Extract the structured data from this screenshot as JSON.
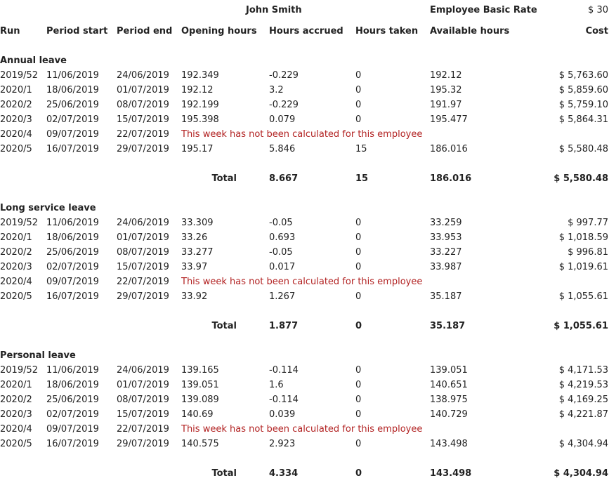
{
  "header": {
    "employee_name": "John Smith",
    "rate_label": "Employee Basic Rate",
    "rate_value": "$ 30"
  },
  "columns": {
    "run": "Run",
    "period_start": "Period start",
    "period_end": "Period end",
    "opening_hours": "Opening hours",
    "hours_accrued": "Hours accrued",
    "hours_taken": "Hours taken",
    "available_hours": "Available hours",
    "cost": "Cost"
  },
  "sections": [
    {
      "title": "Annual leave",
      "rows": [
        {
          "run": "2019/52",
          "period_start": "11/06/2019",
          "period_end": "24/06/2019",
          "opening": "192.349",
          "accrued": "-0.229",
          "taken": "0",
          "available": "192.12",
          "cost": "$ 5,763.60"
        },
        {
          "run": "2020/1",
          "period_start": "18/06/2019",
          "period_end": "01/07/2019",
          "opening": "192.12",
          "accrued": "3.2",
          "taken": "0",
          "available": "195.32",
          "cost": "$ 5,859.60"
        },
        {
          "run": "2020/2",
          "period_start": "25/06/2019",
          "period_end": "08/07/2019",
          "opening": "192.199",
          "accrued": "-0.229",
          "taken": "0",
          "available": "191.97",
          "cost": "$ 5,759.10"
        },
        {
          "run": "2020/3",
          "period_start": "02/07/2019",
          "period_end": "15/07/2019",
          "opening": "195.398",
          "accrued": "0.079",
          "taken": "0",
          "available": "195.477",
          "cost": "$ 5,864.31"
        },
        {
          "run": "2020/4",
          "period_start": "09/07/2019",
          "period_end": "22/07/2019",
          "message": "This week has not been calculated for this employee"
        },
        {
          "run": "2020/5",
          "period_start": "16/07/2019",
          "period_end": "29/07/2019",
          "opening": "195.17",
          "accrued": "5.846",
          "taken": "15",
          "available": "186.016",
          "cost": "$ 5,580.48"
        }
      ],
      "total": {
        "label": "Total",
        "accrued": "8.667",
        "taken": "15",
        "available": "186.016",
        "cost": "$ 5,580.48"
      }
    },
    {
      "title": "Long service leave",
      "rows": [
        {
          "run": "2019/52",
          "period_start": "11/06/2019",
          "period_end": "24/06/2019",
          "opening": "33.309",
          "accrued": "-0.05",
          "taken": "0",
          "available": "33.259",
          "cost": "$ 997.77"
        },
        {
          "run": "2020/1",
          "period_start": "18/06/2019",
          "period_end": "01/07/2019",
          "opening": "33.26",
          "accrued": "0.693",
          "taken": "0",
          "available": "33.953",
          "cost": "$ 1,018.59"
        },
        {
          "run": "2020/2",
          "period_start": "25/06/2019",
          "period_end": "08/07/2019",
          "opening": "33.277",
          "accrued": "-0.05",
          "taken": "0",
          "available": "33.227",
          "cost": "$ 996.81"
        },
        {
          "run": "2020/3",
          "period_start": "02/07/2019",
          "period_end": "15/07/2019",
          "opening": "33.97",
          "accrued": "0.017",
          "taken": "0",
          "available": "33.987",
          "cost": "$ 1,019.61"
        },
        {
          "run": "2020/4",
          "period_start": "09/07/2019",
          "period_end": "22/07/2019",
          "message": "This week has not been calculated for this employee"
        },
        {
          "run": "2020/5",
          "period_start": "16/07/2019",
          "period_end": "29/07/2019",
          "opening": "33.92",
          "accrued": "1.267",
          "taken": "0",
          "available": "35.187",
          "cost": "$ 1,055.61"
        }
      ],
      "total": {
        "label": "Total",
        "accrued": "1.877",
        "taken": "0",
        "available": "35.187",
        "cost": "$ 1,055.61"
      }
    },
    {
      "title": "Personal leave",
      "rows": [
        {
          "run": "2019/52",
          "period_start": "11/06/2019",
          "period_end": "24/06/2019",
          "opening": "139.165",
          "accrued": "-0.114",
          "taken": "0",
          "available": "139.051",
          "cost": "$ 4,171.53"
        },
        {
          "run": "2020/1",
          "period_start": "18/06/2019",
          "period_end": "01/07/2019",
          "opening": "139.051",
          "accrued": "1.6",
          "taken": "0",
          "available": "140.651",
          "cost": "$ 4,219.53"
        },
        {
          "run": "2020/2",
          "period_start": "25/06/2019",
          "period_end": "08/07/2019",
          "opening": "139.089",
          "accrued": "-0.114",
          "taken": "0",
          "available": "138.975",
          "cost": "$ 4,169.25"
        },
        {
          "run": "2020/3",
          "period_start": "02/07/2019",
          "period_end": "15/07/2019",
          "opening": "140.69",
          "accrued": "0.039",
          "taken": "0",
          "available": "140.729",
          "cost": "$ 4,221.87"
        },
        {
          "run": "2020/4",
          "period_start": "09/07/2019",
          "period_end": "22/07/2019",
          "message": "This week has not been calculated for this employee"
        },
        {
          "run": "2020/5",
          "period_start": "16/07/2019",
          "period_end": "29/07/2019",
          "opening": "140.575",
          "accrued": "2.923",
          "taken": "0",
          "available": "143.498",
          "cost": "$ 4,304.94"
        }
      ],
      "total": {
        "label": "Total",
        "accrued": "4.334",
        "taken": "0",
        "available": "143.498",
        "cost": "$ 4,304.94"
      }
    }
  ]
}
